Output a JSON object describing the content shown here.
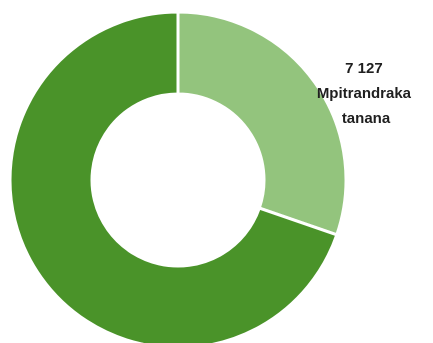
{
  "chart_data": {
    "type": "pie",
    "donut": true,
    "title": "",
    "slices": [
      {
        "value": 7127,
        "color": "#93c47d",
        "label_lines": [
          "7 127",
          "Mpitrandraka",
          "tanana"
        ]
      },
      {
        "value": 16400,
        "color": "#4a9329",
        "label_lines": []
      }
    ],
    "legend": "none"
  }
}
